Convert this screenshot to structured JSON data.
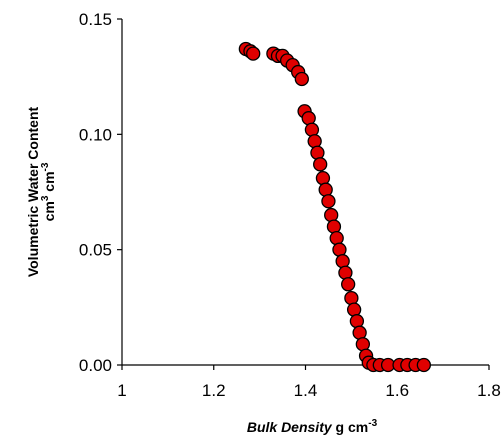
{
  "chart_data": {
    "type": "scatter",
    "title": "",
    "xlabel": {
      "main": "Bulk Density",
      "unit_base": " g cm",
      "unit_exp": "-3"
    },
    "ylabel": {
      "line1": "Volumetric Water Content",
      "line2_part1": "cm",
      "line2_exp1": "3",
      "line2_part2": " cm",
      "line2_exp2": "-3"
    },
    "xlim": [
      1.0,
      1.8
    ],
    "ylim": [
      0.0,
      0.15
    ],
    "x_ticks": [
      1.0,
      1.2,
      1.4,
      1.6,
      1.8
    ],
    "x_tick_labels": [
      "1",
      "1.2",
      "1.4",
      "1.6",
      "1.8"
    ],
    "y_ticks": [
      0.0,
      0.05,
      0.1,
      0.15
    ],
    "y_tick_labels": [
      "0.00",
      "0.05",
      "0.10",
      "0.15"
    ],
    "grid": false,
    "legend": "none",
    "marker_fill": "#e00000",
    "marker_stroke": "#000000",
    "series": [
      {
        "points": [
          {
            "x": 1.27,
            "y": 0.137
          },
          {
            "x": 1.28,
            "y": 0.136
          },
          {
            "x": 1.286,
            "y": 0.135
          },
          {
            "x": 1.33,
            "y": 0.135
          },
          {
            "x": 1.34,
            "y": 0.134
          },
          {
            "x": 1.35,
            "y": 0.134
          },
          {
            "x": 1.36,
            "y": 0.132
          },
          {
            "x": 1.372,
            "y": 0.13
          },
          {
            "x": 1.384,
            "y": 0.127
          },
          {
            "x": 1.392,
            "y": 0.124
          },
          {
            "x": 1.398,
            "y": 0.11
          },
          {
            "x": 1.407,
            "y": 0.107
          },
          {
            "x": 1.414,
            "y": 0.102
          },
          {
            "x": 1.42,
            "y": 0.097
          },
          {
            "x": 1.426,
            "y": 0.092
          },
          {
            "x": 1.432,
            "y": 0.087
          },
          {
            "x": 1.438,
            "y": 0.081
          },
          {
            "x": 1.444,
            "y": 0.076
          },
          {
            "x": 1.45,
            "y": 0.071
          },
          {
            "x": 1.456,
            "y": 0.065
          },
          {
            "x": 1.462,
            "y": 0.06
          },
          {
            "x": 1.468,
            "y": 0.055
          },
          {
            "x": 1.474,
            "y": 0.05
          },
          {
            "x": 1.481,
            "y": 0.045
          },
          {
            "x": 1.487,
            "y": 0.04
          },
          {
            "x": 1.493,
            "y": 0.035
          },
          {
            "x": 1.5,
            "y": 0.029
          },
          {
            "x": 1.506,
            "y": 0.024
          },
          {
            "x": 1.512,
            "y": 0.019
          },
          {
            "x": 1.518,
            "y": 0.014
          },
          {
            "x": 1.525,
            "y": 0.009
          },
          {
            "x": 1.532,
            "y": 0.004
          },
          {
            "x": 1.538,
            "y": 0.001
          },
          {
            "x": 1.548,
            "y": 0.0
          },
          {
            "x": 1.562,
            "y": 0.0
          },
          {
            "x": 1.58,
            "y": 0.0
          },
          {
            "x": 1.605,
            "y": 0.0
          },
          {
            "x": 1.622,
            "y": 0.0
          },
          {
            "x": 1.64,
            "y": 0.0
          },
          {
            "x": 1.658,
            "y": 0.0
          }
        ]
      }
    ]
  }
}
